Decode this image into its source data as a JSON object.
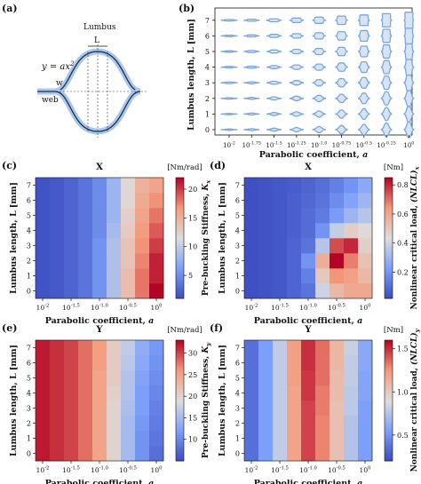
{
  "panels": {
    "a": {
      "letter": "(a)",
      "label_lumbus": "Lumbus",
      "label_L": "L",
      "equation_lhs": "y = ax",
      "equation_exp": "2",
      "label_w": "w",
      "label_web": "web"
    },
    "b": {
      "letter": "(b)",
      "ylabel": "Lumbus length, L [mm]",
      "xlabel": "Parabolic coefficient, ",
      "xlabel_var": "a",
      "yticks": [
        "0",
        "1",
        "2",
        "3",
        "4",
        "5",
        "6",
        "7"
      ],
      "xticks": [
        "-2",
        "-1.75",
        "-1.5",
        "-1.25",
        "-1.0",
        "-0.75",
        "-0.5",
        "-0.25",
        "0"
      ],
      "xtick_base": "10",
      "line_color": "#7aa6dc",
      "fill_color": "#d6e4f5"
    },
    "c": {
      "letter": "(c)",
      "title": "X",
      "unit": "[Nm/rad]",
      "cbar_label": "Pre-buckling Stiffness, ",
      "cbar_var": "K",
      "cbar_sub": "x",
      "cbar_ticks": [
        "5",
        "10",
        "15",
        "20"
      ]
    },
    "d": {
      "letter": "(d)",
      "title": "X",
      "unit": "[Nm]",
      "cbar_label": "Nonlinear critical load, ",
      "cbar_var": "(NLCL)",
      "cbar_sub": "x",
      "cbar_ticks": [
        "0.2",
        "0.4",
        "0.6",
        "0.8"
      ]
    },
    "e": {
      "letter": "(e)",
      "title": "Y",
      "unit": "[Nm/rad]",
      "cbar_label": "Pre-buckling Stiffness, ",
      "cbar_var": "K",
      "cbar_sub": "y",
      "cbar_ticks": [
        "10",
        "15",
        "20",
        "25",
        "30"
      ]
    },
    "f": {
      "letter": "(f)",
      "title": "Y",
      "unit": "[Nm]",
      "cbar_label": "Nonlinear critical load, ",
      "cbar_var": "(NLCL)",
      "cbar_sub": "y",
      "cbar_ticks": [
        "0.5",
        "1.0",
        "1.5"
      ]
    }
  },
  "heatmap_axes": {
    "ylabel": "Lumbus length, L [mm]",
    "xlabel": "Parabolic coefficient, ",
    "xlabel_var": "a",
    "yticks": [
      "0",
      "1",
      "2",
      "3",
      "4",
      "5",
      "6",
      "7"
    ],
    "xticks": [
      "-2",
      "-1.5",
      "-1.0",
      "-0.5",
      "0"
    ],
    "xtick_base": "10"
  },
  "chart_data": [
    {
      "panel": "c",
      "type": "heatmap",
      "title": "X",
      "x_exponents": [
        -2,
        -1.75,
        -1.5,
        -1.25,
        -1.0,
        -0.75,
        -0.5,
        -0.25,
        0
      ],
      "y": [
        0,
        1,
        2,
        3,
        4,
        5,
        6,
        7
      ],
      "vmin": 1,
      "vmax": 22,
      "values": [
        [
          1.5,
          1.8,
          2.5,
          3.5,
          5.5,
          9,
          14,
          18,
          22
        ],
        [
          1.5,
          1.8,
          2.5,
          3.5,
          5.5,
          9,
          14,
          18,
          21
        ],
        [
          1.5,
          1.8,
          2.5,
          3.5,
          5.5,
          9,
          13.5,
          17.5,
          21
        ],
        [
          1.5,
          1.8,
          2.5,
          3.5,
          5.5,
          9,
          13.5,
          17,
          20
        ],
        [
          1.5,
          1.8,
          2.5,
          3.5,
          5,
          8.5,
          13,
          16.5,
          19
        ],
        [
          1.5,
          1.8,
          2.5,
          3.5,
          5,
          8,
          12.5,
          16,
          18
        ],
        [
          1.5,
          1.8,
          2.5,
          3.5,
          5,
          8,
          12,
          15.5,
          17
        ],
        [
          1.5,
          1.8,
          2.5,
          3.5,
          5,
          8,
          12,
          15,
          16
        ]
      ]
    },
    {
      "panel": "d",
      "type": "heatmap",
      "title": "X",
      "x_exponents": [
        -2,
        -1.75,
        -1.5,
        -1.25,
        -1.0,
        -0.75,
        -0.5,
        -0.25,
        0
      ],
      "y": [
        0,
        1,
        2,
        3,
        4,
        5,
        6,
        7
      ],
      "vmin": 0.02,
      "vmax": 0.85,
      "values": [
        [
          0.03,
          0.04,
          0.05,
          0.08,
          0.12,
          0.4,
          0.55,
          0.6,
          0.6
        ],
        [
          0.03,
          0.04,
          0.05,
          0.08,
          0.15,
          0.5,
          0.65,
          0.62,
          0.55
        ],
        [
          0.03,
          0.04,
          0.05,
          0.08,
          0.2,
          0.58,
          0.85,
          0.68,
          0.52
        ],
        [
          0.03,
          0.04,
          0.05,
          0.08,
          0.12,
          0.35,
          0.75,
          0.8,
          0.48
        ],
        [
          0.03,
          0.04,
          0.05,
          0.07,
          0.1,
          0.2,
          0.38,
          0.48,
          0.45
        ],
        [
          0.03,
          0.04,
          0.05,
          0.07,
          0.1,
          0.14,
          0.22,
          0.3,
          0.35
        ],
        [
          0.03,
          0.04,
          0.05,
          0.07,
          0.09,
          0.12,
          0.18,
          0.24,
          0.3
        ],
        [
          0.03,
          0.04,
          0.05,
          0.06,
          0.08,
          0.11,
          0.15,
          0.2,
          0.26
        ]
      ]
    },
    {
      "panel": "e",
      "type": "heatmap",
      "title": "Y",
      "x_exponents": [
        -2,
        -1.75,
        -1.5,
        -1.25,
        -1.0,
        -0.75,
        -0.5,
        -0.25,
        0
      ],
      "y": [
        0,
        1,
        2,
        3,
        4,
        5,
        6,
        7
      ],
      "vmin": 5,
      "vmax": 33,
      "values": [
        [
          32,
          31,
          30,
          28,
          25,
          20,
          15,
          11,
          8
        ],
        [
          32,
          31,
          30,
          28,
          25,
          20,
          15,
          11,
          8.5
        ],
        [
          32,
          31,
          30,
          28,
          25,
          20,
          15,
          11.5,
          9
        ],
        [
          32,
          31,
          30,
          28,
          25,
          20,
          15.5,
          12,
          9.5
        ],
        [
          32,
          31,
          30,
          28,
          25,
          20.5,
          16,
          12,
          10
        ],
        [
          32,
          31,
          30,
          28,
          25,
          21,
          16,
          12.5,
          10.5
        ],
        [
          32,
          31,
          30,
          28,
          25.5,
          21,
          16.5,
          13,
          11
        ],
        [
          32,
          31,
          30,
          28,
          25.5,
          21,
          17,
          13.5,
          11.5
        ]
      ]
    },
    {
      "panel": "f",
      "type": "heatmap",
      "title": "Y",
      "x_exponents": [
        -2,
        -1.75,
        -1.5,
        -1.25,
        -1.0,
        -0.75,
        -0.5,
        -0.25,
        0
      ],
      "y": [
        0,
        1,
        2,
        3,
        4,
        5,
        6,
        7
      ],
      "vmin": 0.2,
      "vmax": 1.6,
      "values": [
        [
          0.35,
          0.55,
          0.8,
          1.2,
          1.45,
          1.3,
          1.05,
          0.75,
          0.55
        ],
        [
          0.35,
          0.55,
          0.8,
          1.2,
          1.45,
          1.3,
          1.05,
          0.75,
          0.55
        ],
        [
          0.35,
          0.55,
          0.8,
          1.2,
          1.45,
          1.3,
          1.05,
          0.75,
          0.55
        ],
        [
          0.35,
          0.55,
          0.8,
          1.2,
          1.45,
          1.32,
          1.05,
          0.78,
          0.55
        ],
        [
          0.35,
          0.55,
          0.8,
          1.2,
          1.48,
          1.32,
          1.08,
          0.78,
          0.58
        ],
        [
          0.35,
          0.55,
          0.8,
          1.22,
          1.48,
          1.35,
          1.08,
          0.8,
          0.58
        ],
        [
          0.35,
          0.55,
          0.8,
          1.22,
          1.5,
          1.35,
          1.1,
          0.8,
          0.6
        ],
        [
          0.35,
          0.55,
          0.8,
          1.22,
          1.5,
          1.35,
          1.1,
          0.82,
          0.6
        ]
      ]
    }
  ]
}
